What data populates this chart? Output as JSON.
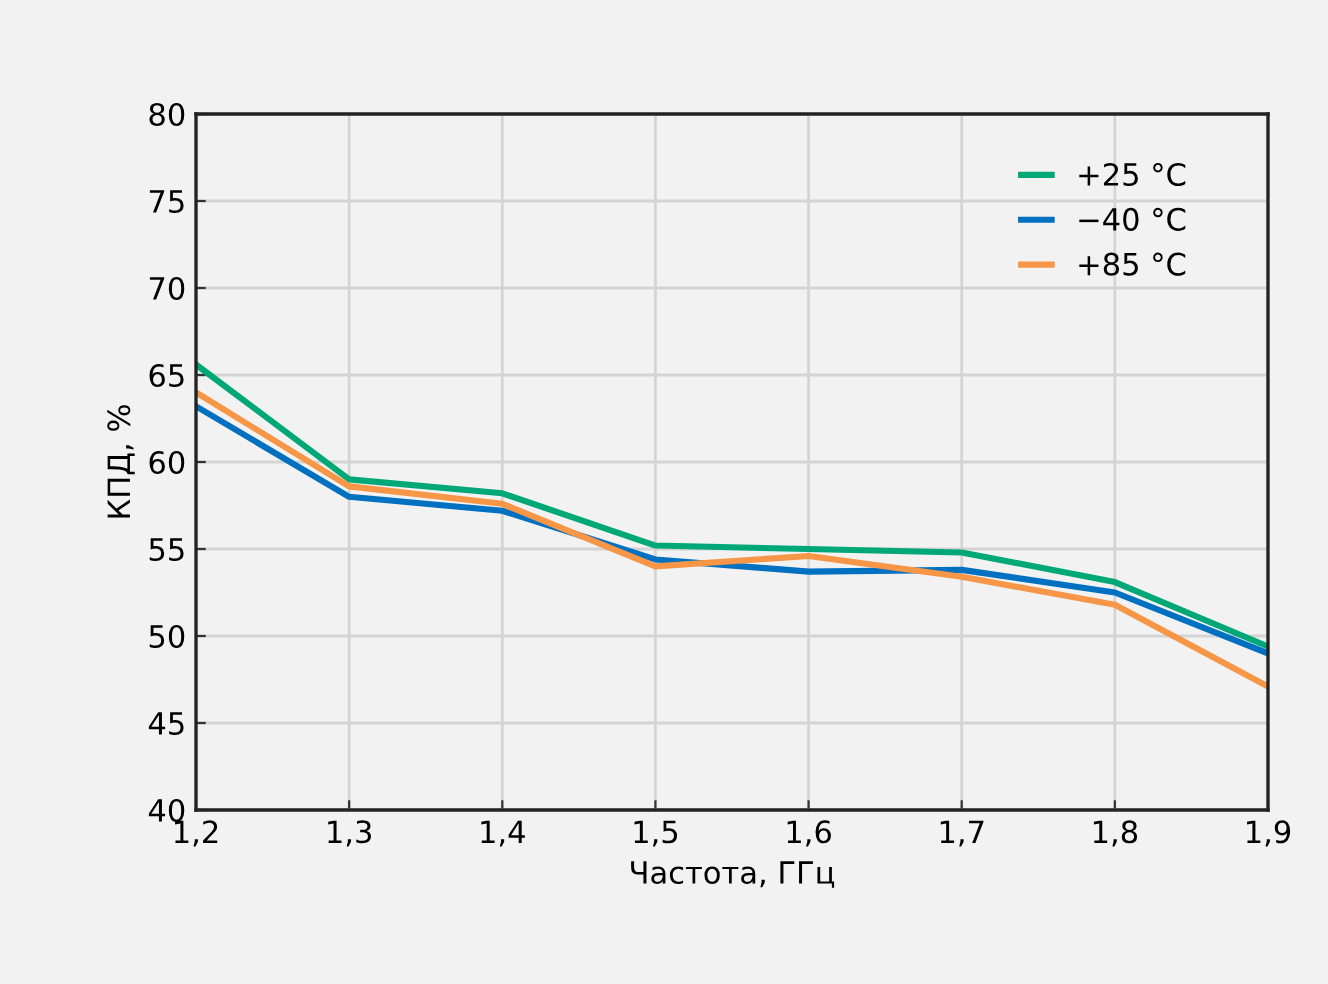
{
  "chart_data": {
    "type": "line",
    "xlabel": "Частота, ГГц",
    "ylabel": "КПД, %",
    "x": [
      1.2,
      1.3,
      1.4,
      1.5,
      1.6,
      1.7,
      1.8,
      1.9
    ],
    "series": [
      {
        "name": "+25 °C",
        "color": "#00a878",
        "values": [
          65.6,
          59.0,
          58.2,
          55.2,
          55.0,
          54.8,
          53.1,
          49.4
        ]
      },
      {
        "name": "−40 °C",
        "color": "#0070c0",
        "values": [
          63.2,
          58.0,
          57.2,
          54.4,
          53.7,
          53.8,
          52.5,
          49.0
        ]
      },
      {
        "name": "+85 °C",
        "color": "#f79646",
        "values": [
          64.0,
          58.6,
          57.6,
          54.0,
          54.6,
          53.4,
          51.8,
          47.1
        ]
      }
    ],
    "xlim": [
      1.2,
      1.9
    ],
    "xticks": [
      {
        "value": 1.2,
        "label": "1,2"
      },
      {
        "value": 1.3,
        "label": "1,3"
      },
      {
        "value": 1.4,
        "label": "1,4"
      },
      {
        "value": 1.5,
        "label": "1,5"
      },
      {
        "value": 1.6,
        "label": "1,6"
      },
      {
        "value": 1.7,
        "label": "1,7"
      },
      {
        "value": 1.8,
        "label": "1,8"
      },
      {
        "value": 1.9,
        "label": "1,9"
      }
    ],
    "ylim": [
      40,
      80
    ],
    "yticks": [
      40,
      45,
      50,
      55,
      60,
      65,
      70,
      75,
      80
    ],
    "grid": true,
    "legend": "top right",
    "marker": "none",
    "line_style": "solid"
  }
}
